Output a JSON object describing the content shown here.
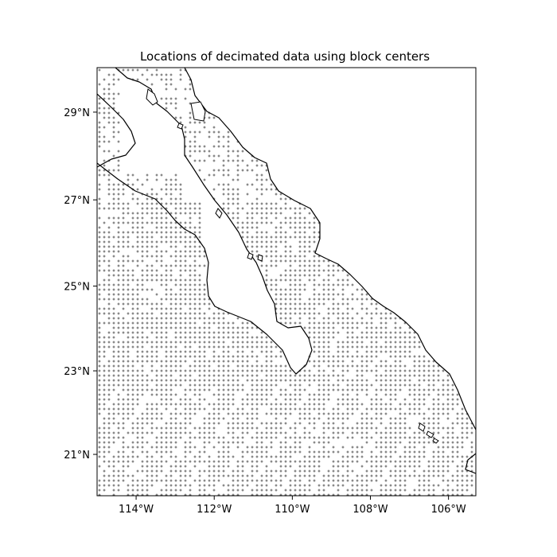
{
  "map": {
    "title": "Locations of decimated data using block centers",
    "projection": "Mercator",
    "extent": {
      "lon": [
        -115,
        -105.3
      ],
      "lat": [
        20,
        30
      ]
    },
    "lon_ticks": [
      {
        "value": -114,
        "label": "114°W"
      },
      {
        "value": -112,
        "label": "112°W"
      },
      {
        "value": -110,
        "label": "110°W"
      },
      {
        "value": -108,
        "label": "108°W"
      },
      {
        "value": -106,
        "label": "106°W"
      }
    ],
    "lat_ticks": [
      {
        "value": 21,
        "label": "21°N"
      },
      {
        "value": 23,
        "label": "23°N"
      },
      {
        "value": 25,
        "label": "25°N"
      },
      {
        "value": 27,
        "label": "27°N"
      },
      {
        "value": 29,
        "label": "29°N"
      }
    ],
    "point_marker": "+",
    "point_color": "#444444",
    "coastline_color": "#000000"
  }
}
